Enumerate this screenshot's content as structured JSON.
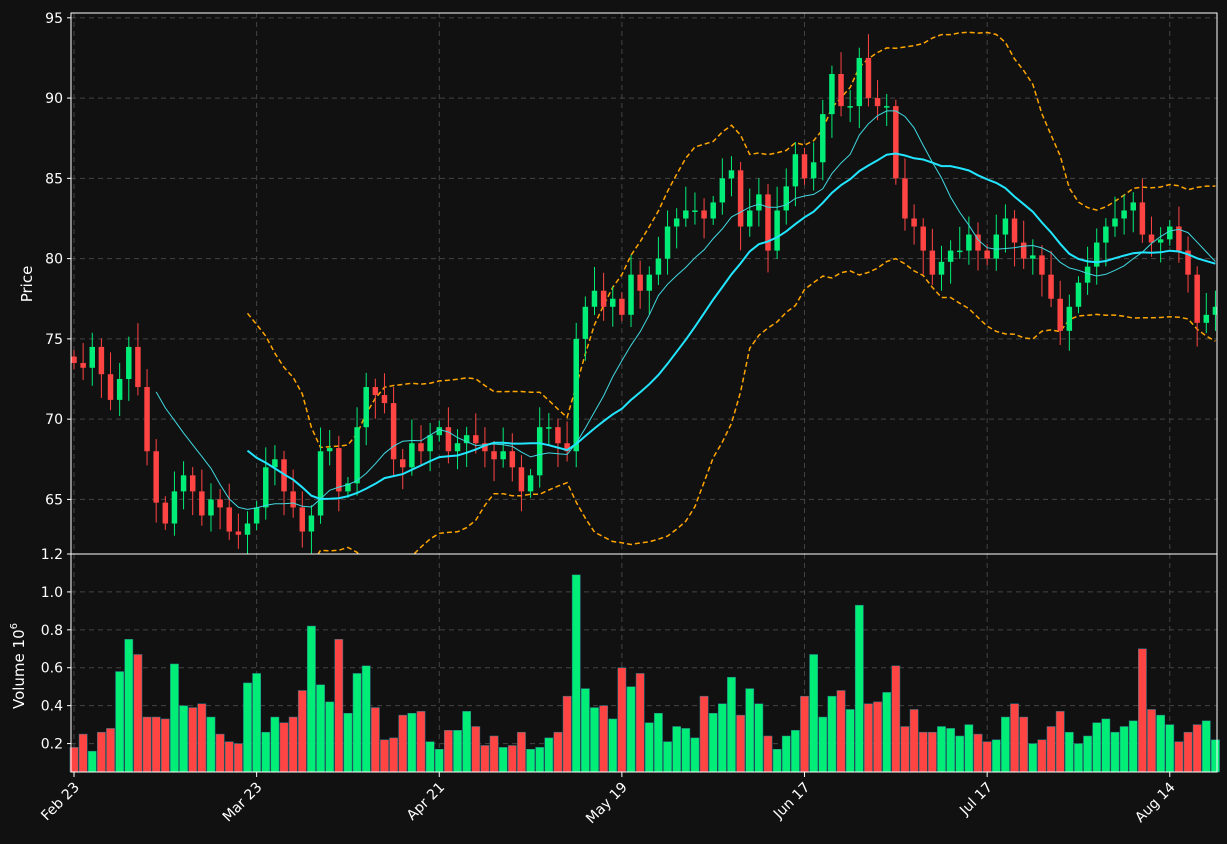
{
  "chart_data": {
    "type": "candlestick",
    "colors": {
      "background": "#111111",
      "up": "#00ee77",
      "down": "#ff4444",
      "ma_fast": "#40d8e0",
      "ma_slow": "#22e5ff",
      "bollinger": "#ffa500",
      "grid": "#444444",
      "axis": "#ffffff"
    },
    "price_panel": {
      "ylabel": "Price",
      "ylim": [
        61.6,
        95.3
      ],
      "yticks": [
        65,
        70,
        75,
        80,
        85,
        90,
        95
      ],
      "grid": true
    },
    "volume_panel": {
      "ylabel": "Volume  10",
      "ylabel_exponent": "6",
      "ylim": [
        0.05,
        1.2
      ],
      "yticks": [
        "0.2",
        "0.4",
        "0.6",
        "0.8",
        "1.0",
        "1.2"
      ],
      "grid": true
    },
    "x_axis": {
      "n_bars": 126,
      "ticks": [
        {
          "index": 0,
          "label": "Feb 23"
        },
        {
          "index": 20,
          "label": "Mar 23"
        },
        {
          "index": 40,
          "label": "Apr 21"
        },
        {
          "index": 60,
          "label": "May 19"
        },
        {
          "index": 80,
          "label": "Jun 17"
        },
        {
          "index": 100,
          "label": "Jul 17"
        },
        {
          "index": 120,
          "label": "Aug 14"
        }
      ]
    },
    "ohlc_keypoints": [
      [
        0,
        73.5
      ],
      [
        1,
        73.2
      ],
      [
        2,
        74.5
      ],
      [
        3,
        72.8
      ],
      [
        4,
        71.2
      ],
      [
        5,
        72.5
      ],
      [
        6,
        74.5
      ],
      [
        7,
        72.0
      ],
      [
        8,
        68.0
      ],
      [
        9,
        64.8
      ],
      [
        10,
        63.5
      ],
      [
        11,
        65.5
      ],
      [
        12,
        66.5
      ],
      [
        13,
        65.5
      ],
      [
        14,
        64.0
      ],
      [
        15,
        65.0
      ],
      [
        16,
        64.5
      ],
      [
        17,
        63.0
      ],
      [
        18,
        62.8
      ],
      [
        19,
        63.5
      ],
      [
        20,
        64.5
      ],
      [
        21,
        67.0
      ],
      [
        22,
        67.5
      ],
      [
        23,
        65.5
      ],
      [
        24,
        64.5
      ],
      [
        25,
        63.0
      ],
      [
        26,
        64.0
      ],
      [
        27,
        68.0
      ],
      [
        28,
        68.2
      ],
      [
        29,
        65.5
      ],
      [
        30,
        66.0
      ],
      [
        31,
        69.5
      ],
      [
        32,
        72.0
      ],
      [
        33,
        71.5
      ],
      [
        34,
        71.0
      ],
      [
        35,
        67.5
      ],
      [
        36,
        67.0
      ],
      [
        37,
        68.5
      ],
      [
        38,
        68.0
      ],
      [
        39,
        69.0
      ],
      [
        40,
        69.5
      ],
      [
        41,
        68.0
      ],
      [
        42,
        68.5
      ],
      [
        43,
        69.0
      ],
      [
        44,
        68.5
      ],
      [
        45,
        68.0
      ],
      [
        46,
        67.5
      ],
      [
        47,
        68.0
      ],
      [
        48,
        67.0
      ],
      [
        49,
        65.5
      ],
      [
        50,
        66.5
      ],
      [
        51,
        69.5
      ],
      [
        52,
        69.5
      ],
      [
        53,
        68.5
      ],
      [
        54,
        68.0
      ],
      [
        55,
        75.0
      ],
      [
        56,
        77.0
      ],
      [
        57,
        78.0
      ],
      [
        58,
        77.0
      ],
      [
        59,
        77.5
      ],
      [
        60,
        76.5
      ],
      [
        61,
        79.0
      ],
      [
        62,
        78.0
      ],
      [
        63,
        79.0
      ],
      [
        64,
        80.0
      ],
      [
        65,
        82.0
      ],
      [
        66,
        82.5
      ],
      [
        67,
        83.0
      ],
      [
        68,
        83.0
      ],
      [
        69,
        82.5
      ],
      [
        70,
        83.5
      ],
      [
        71,
        85.0
      ],
      [
        72,
        85.5
      ],
      [
        73,
        82.0
      ],
      [
        74,
        83.0
      ],
      [
        75,
        84.0
      ],
      [
        76,
        80.5
      ],
      [
        77,
        83.0
      ],
      [
        78,
        84.5
      ],
      [
        79,
        86.5
      ],
      [
        80,
        85.0
      ],
      [
        81,
        86.0
      ],
      [
        82,
        89.0
      ],
      [
        83,
        91.5
      ],
      [
        84,
        89.5
      ],
      [
        85,
        89.5
      ],
      [
        86,
        92.5
      ],
      [
        87,
        90.0
      ],
      [
        88,
        89.5
      ],
      [
        89,
        89.5
      ],
      [
        90,
        85.0
      ],
      [
        91,
        82.5
      ],
      [
        92,
        82.0
      ],
      [
        93,
        80.5
      ],
      [
        94,
        79.0
      ],
      [
        95,
        79.8
      ],
      [
        96,
        80.5
      ],
      [
        97,
        80.5
      ],
      [
        98,
        81.5
      ],
      [
        99,
        80.5
      ],
      [
        100,
        80.0
      ],
      [
        101,
        81.5
      ],
      [
        102,
        82.5
      ],
      [
        103,
        81.0
      ],
      [
        104,
        80.0
      ],
      [
        105,
        80.2
      ],
      [
        106,
        79.0
      ],
      [
        107,
        77.5
      ],
      [
        108,
        75.5
      ],
      [
        109,
        77.0
      ],
      [
        110,
        78.5
      ],
      [
        111,
        79.5
      ],
      [
        112,
        81.0
      ],
      [
        113,
        82.0
      ],
      [
        114,
        82.5
      ],
      [
        115,
        83.0
      ],
      [
        116,
        83.5
      ],
      [
        117,
        81.5
      ],
      [
        118,
        81.0
      ],
      [
        119,
        81.2
      ],
      [
        120,
        82.0
      ],
      [
        121,
        80.5
      ],
      [
        122,
        79.0
      ],
      [
        123,
        76.0
      ],
      [
        124,
        76.5
      ],
      [
        125,
        77.0
      ]
    ],
    "volume_values": [
      0.18,
      0.25,
      0.16,
      0.26,
      0.28,
      0.58,
      0.75,
      0.67,
      0.34,
      0.34,
      0.33,
      0.62,
      0.4,
      0.39,
      0.41,
      0.34,
      0.25,
      0.21,
      0.2,
      0.52,
      0.57,
      0.26,
      0.34,
      0.31,
      0.34,
      0.48,
      0.82,
      0.51,
      0.42,
      0.75,
      0.36,
      0.57,
      0.61,
      0.39,
      0.22,
      0.23,
      0.35,
      0.36,
      0.37,
      0.21,
      0.17,
      0.27,
      0.27,
      0.37,
      0.29,
      0.19,
      0.24,
      0.18,
      0.19,
      0.26,
      0.17,
      0.18,
      0.23,
      0.26,
      0.45,
      1.09,
      0.49,
      0.39,
      0.4,
      0.33,
      0.6,
      0.5,
      0.57,
      0.31,
      0.36,
      0.21,
      0.29,
      0.28,
      0.23,
      0.45,
      0.36,
      0.41,
      0.55,
      0.35,
      0.49,
      0.41,
      0.24,
      0.17,
      0.24,
      0.27,
      0.45,
      0.67,
      0.34,
      0.45,
      0.48,
      0.38,
      0.93,
      0.41,
      0.42,
      0.47,
      0.61,
      0.29,
      0.38,
      0.26,
      0.26,
      0.29,
      0.28,
      0.24,
      0.3,
      0.25,
      0.21,
      0.22,
      0.34,
      0.41,
      0.34,
      0.2,
      0.22,
      0.29,
      0.37,
      0.26,
      0.2,
      0.24,
      0.31,
      0.33,
      0.26,
      0.29,
      0.32,
      0.7,
      0.38,
      0.35,
      0.3,
      0.21,
      0.26,
      0.3,
      0.32,
      0.22
    ]
  }
}
